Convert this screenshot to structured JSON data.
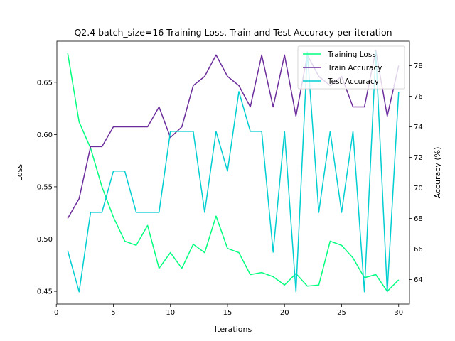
{
  "chart_data": {
    "type": "line",
    "title": "Q2.4 batch_size=16 Training Loss, Train and Test Accuracy per iteration",
    "xlabel": "Iterations",
    "ylabel_left": "Loss",
    "ylabel_right": "Accuracy (%)",
    "xlim": [
      0.05,
      30.95
    ],
    "ylim_left": [
      0.4378,
      0.6893
    ],
    "ylim_right": [
      62.4,
      79.6
    ],
    "x_ticks": [
      0,
      5,
      10,
      15,
      20,
      25,
      30
    ],
    "y_ticks_left": [
      0.45,
      0.5,
      0.55,
      0.6,
      0.65
    ],
    "y_ticks_right": [
      64,
      66,
      68,
      70,
      72,
      74,
      76,
      78
    ],
    "grid": false,
    "legend_position": "upper right",
    "x": [
      1,
      2,
      3,
      4,
      5,
      6,
      7,
      8,
      9,
      10,
      11,
      12,
      13,
      14,
      15,
      16,
      17,
      18,
      19,
      20,
      21,
      22,
      23,
      24,
      25,
      26,
      27,
      28,
      29,
      30
    ],
    "series": [
      {
        "name": "Training Loss",
        "axis": "left",
        "color": "#00ff7f",
        "values": [
          0.678,
          0.612,
          0.587,
          0.55,
          0.521,
          0.498,
          0.494,
          0.513,
          0.472,
          0.487,
          0.472,
          0.495,
          0.487,
          0.522,
          0.491,
          0.487,
          0.466,
          0.468,
          0.464,
          0.456,
          0.467,
          0.455,
          0.456,
          0.498,
          0.494,
          0.482,
          0.463,
          0.466,
          0.45,
          0.461
        ]
      },
      {
        "name": "Train Accuracy",
        "axis": "right",
        "color": "#6b2d9b",
        "values": [
          68.0,
          69.3,
          72.7,
          72.7,
          74.0,
          74.0,
          74.0,
          74.0,
          75.3,
          73.3,
          74.0,
          76.7,
          77.3,
          78.7,
          77.3,
          76.7,
          75.3,
          78.7,
          75.3,
          78.7,
          74.7,
          78.7,
          77.3,
          76.7,
          77.3,
          75.3,
          75.3,
          79.0,
          74.7,
          78.0
        ]
      },
      {
        "name": "Test Accuracy",
        "axis": "right",
        "color": "#00ced1",
        "values": [
          65.9,
          63.2,
          68.4,
          68.4,
          71.1,
          71.1,
          68.4,
          68.4,
          68.4,
          73.7,
          73.7,
          73.7,
          68.4,
          73.7,
          71.1,
          76.3,
          73.7,
          73.7,
          65.8,
          73.7,
          63.2,
          78.9,
          68.4,
          73.7,
          68.4,
          73.7,
          63.2,
          78.9,
          63.2,
          76.3
        ]
      }
    ]
  }
}
